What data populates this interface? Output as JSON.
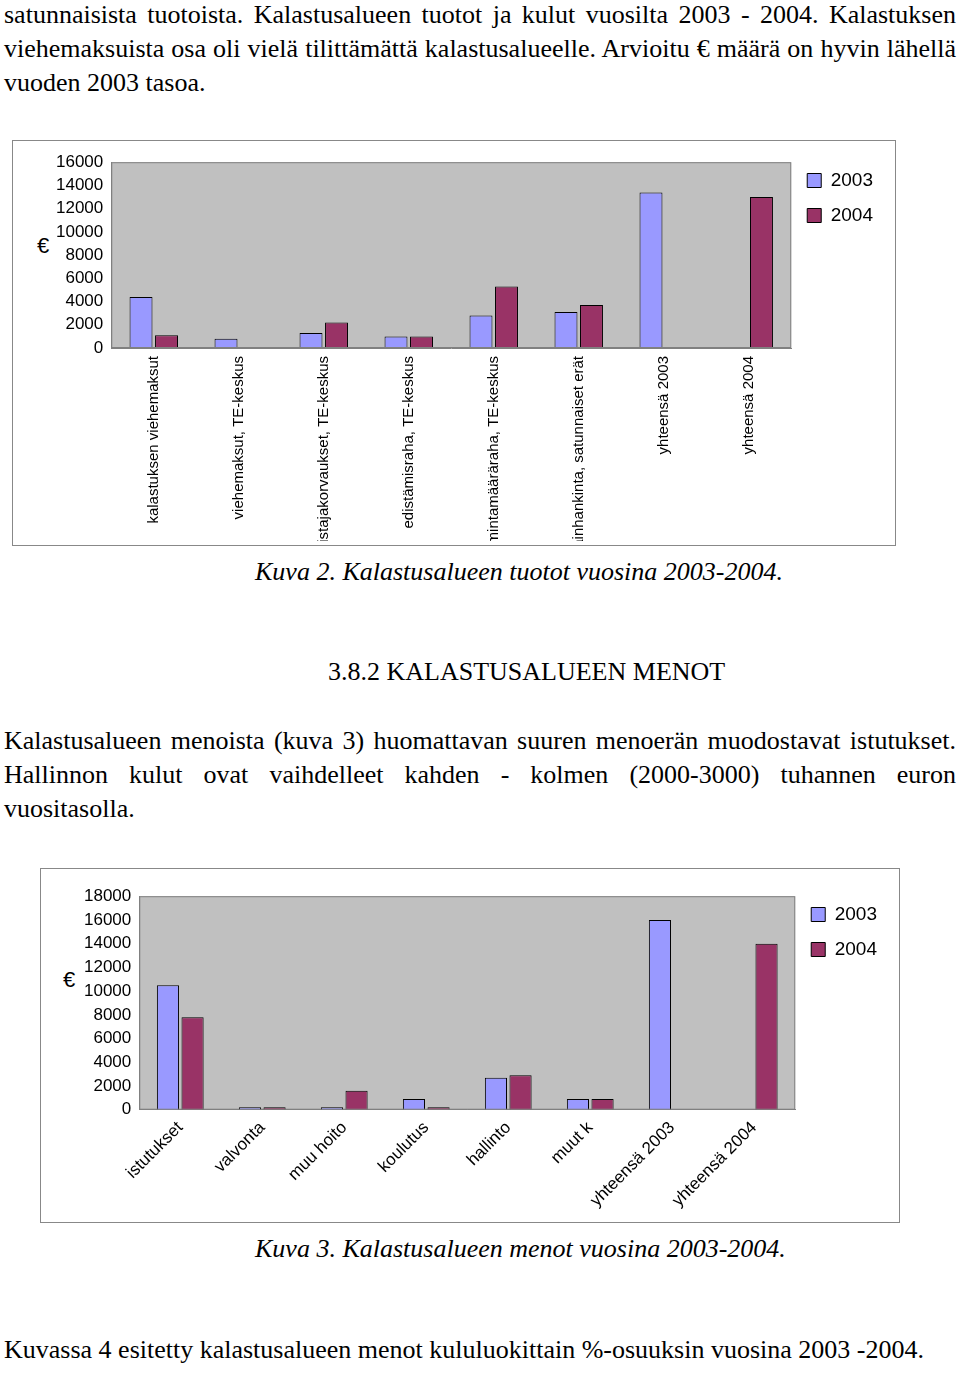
{
  "text": {
    "intro": "satunnaisista tuotoista. Kalastusalueen tuotot ja kulut vuosilta 2003 - 2004. Kalastuksen viehemaksuista osa oli vielä tilittämättä kalastusalueelle. Arvioitu € määrä on hyvin lähellä vuoden 2003 tasoa.",
    "caption_1": "Kuva 2. Kalastusalueen tuotot vuosina 2003-2004.",
    "heading": "3.8.2 KALASTUSALUEEN MENOT",
    "paragraph": "Kalastusalueen menoista (kuva 3) huomattavan suuren menoerän muodostavat istutukset. Hallinnon kulut ovat vaihdelleet kahden - kolmen (2000-3000) tuhannen euron vuositasolla.",
    "caption_2": "Kuva 3. Kalastusalueen menot vuosina 2003-2004.",
    "closing": "Kuvassa 4 esitetty kalastusalueen menot kululuokittain %-osuuksin vuosina 2003 -2004."
  },
  "chart_data": [
    {
      "type": "bar",
      "ylabel": "€",
      "categories": [
        "kalastuksen viehemaksut",
        "viehemaksut, TE-keskus",
        "omistajakorvaukset, TE-keskus",
        "edistämisraha, TE-keskus",
        "toimintamääräraha, TE-keskus",
        "varainhankinta, satunnaiset erät",
        "yhteensä 2003",
        "yhteensä 2004"
      ],
      "series": [
        {
          "name": "2003",
          "color": "#9999ff",
          "values": [
            4400,
            800,
            1300,
            1000,
            2800,
            3100,
            13400,
            null
          ]
        },
        {
          "name": "2004",
          "color": "#993366",
          "values": [
            1100,
            null,
            2200,
            1000,
            5300,
            3700,
            null,
            13000
          ]
        }
      ],
      "ylim": [
        0,
        16000
      ],
      "yticks": [
        0,
        2000,
        4000,
        6000,
        8000,
        10000,
        12000,
        14000,
        16000
      ],
      "grid": false,
      "legend": "right"
    },
    {
      "type": "bar",
      "ylabel": "€",
      "categories": [
        "istutukset",
        "valvonta",
        "muu hoito",
        "koulutus",
        "hallinto",
        "muut k",
        "yhteensä 2003",
        "yhteensä 2004"
      ],
      "series": [
        {
          "name": "2003",
          "color": "#9999ff",
          "values": [
            10500,
            200,
            200,
            900,
            2700,
            900,
            16000,
            null
          ]
        },
        {
          "name": "2004",
          "color": "#993366",
          "values": [
            7800,
            200,
            1600,
            200,
            2900,
            900,
            null,
            14000
          ]
        }
      ],
      "ylim": [
        0,
        18000
      ],
      "yticks": [
        0,
        2000,
        4000,
        6000,
        8000,
        10000,
        12000,
        14000,
        16000,
        18000
      ],
      "grid": false,
      "legend": "right"
    }
  ]
}
